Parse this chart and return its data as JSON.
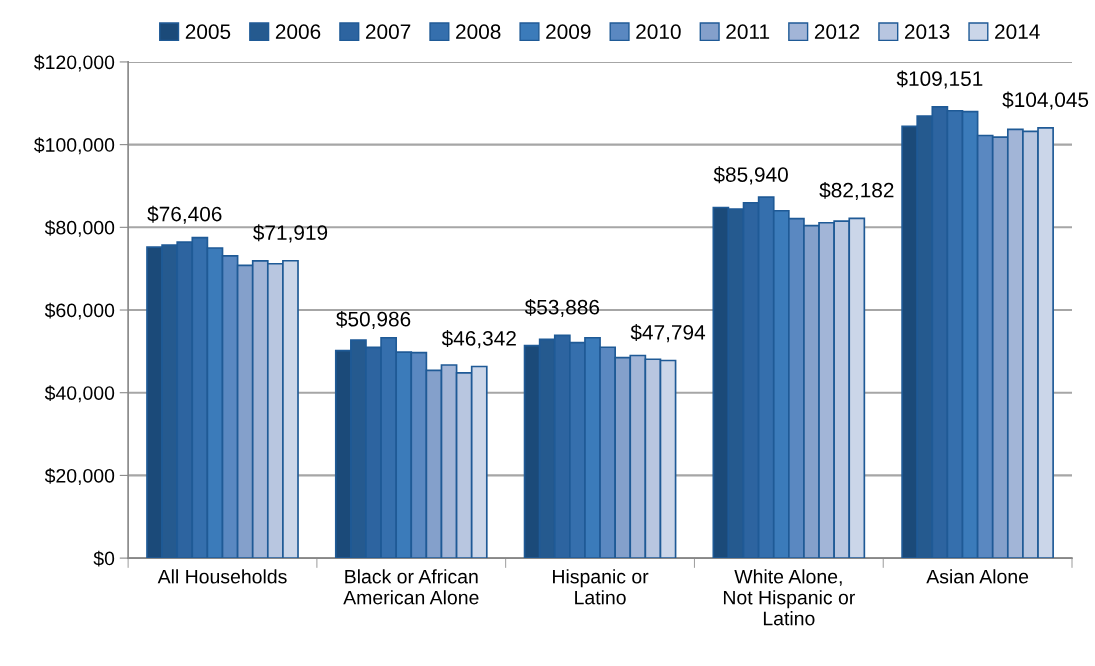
{
  "chart_data": {
    "type": "bar",
    "categories": [
      "All Households",
      "Black or African\nAmerican Alone",
      "Hispanic or\nLatino",
      "White Alone,\nNot Hispanic or\nLatino",
      "Asian Alone"
    ],
    "series": [
      {
        "name": "2005",
        "color": "#1b4a79",
        "values": [
          75200,
          50200,
          51400,
          84800,
          104400
        ]
      },
      {
        "name": "2006",
        "color": "#255a8f",
        "values": [
          75700,
          52700,
          52900,
          84400,
          106900
        ]
      },
      {
        "name": "2007",
        "color": "#2d64a0",
        "values": [
          76406,
          50986,
          53886,
          85940,
          109151
        ],
        "value_labels": [
          "$76,406",
          "$50,986",
          "$53,886",
          "$85,940",
          "$109,151"
        ]
      },
      {
        "name": "2008",
        "color": "#356fad",
        "values": [
          77500,
          53300,
          52100,
          87300,
          108200
        ]
      },
      {
        "name": "2009",
        "color": "#3b7bba",
        "values": [
          75000,
          49800,
          53300,
          84000,
          108000
        ]
      },
      {
        "name": "2010",
        "color": "#5a88c1",
        "values": [
          73100,
          49700,
          51000,
          82100,
          102200
        ]
      },
      {
        "name": "2011",
        "color": "#84a0cb",
        "values": [
          70800,
          45400,
          48500,
          80400,
          101800
        ]
      },
      {
        "name": "2012",
        "color": "#a2b5d7",
        "values": [
          71900,
          46700,
          49000,
          81100,
          103700
        ]
      },
      {
        "name": "2013",
        "color": "#b8c6e0",
        "values": [
          71200,
          44800,
          48100,
          81500,
          103200
        ]
      },
      {
        "name": "2014",
        "color": "#cbd6e9",
        "values": [
          71919,
          46342,
          47794,
          82182,
          104045
        ],
        "value_labels": [
          "$71,919",
          "$46,342",
          "$47,794",
          "$82,182",
          "$104,045"
        ]
      }
    ],
    "ylim": [
      0,
      120000
    ],
    "yticks": [
      {
        "value": 0,
        "label": "$0"
      },
      {
        "value": 20000,
        "label": "$20,000"
      },
      {
        "value": 40000,
        "label": "$40,000"
      },
      {
        "value": 60000,
        "label": "$60,000"
      },
      {
        "value": 80000,
        "label": "$80,000"
      },
      {
        "value": 100000,
        "label": "$100,000"
      },
      {
        "value": 120000,
        "label": "$120,000"
      }
    ],
    "grid": "y",
    "legend": "top"
  }
}
